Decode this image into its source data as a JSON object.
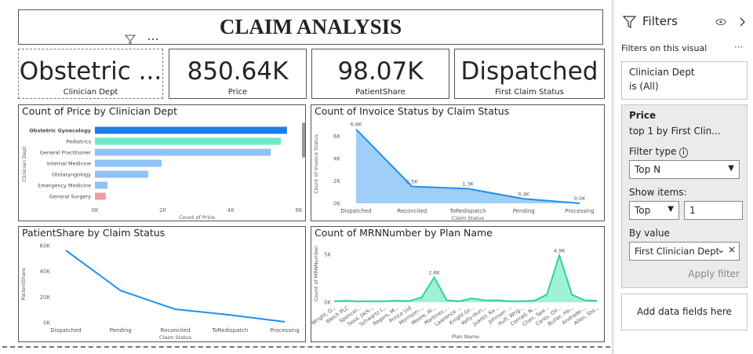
{
  "header": {
    "title": "CLAIM ANALYSIS"
  },
  "cards": [
    {
      "value": "Obstetric ...",
      "label": "Clinician Dept"
    },
    {
      "value": "850.64K",
      "label": "Price"
    },
    {
      "value": "98.07K",
      "label": "PatientShare"
    },
    {
      "value": "Dispatched",
      "label": "First Claim Status"
    }
  ],
  "chart_data": [
    {
      "type": "bar",
      "orientation": "horizontal",
      "title": "Count of Price by Clinician Dept",
      "x_label": "Count of Price",
      "y_label": "Clinician Dept",
      "categories": [
        "Obstetric Gynecology",
        "Pediatrics",
        "General Practitioner",
        "Internal Medicine",
        "Otolaryngology",
        "Emergency Medicine",
        "General Surgery"
      ],
      "values": [
        5650,
        5470,
        5170,
        1960,
        1570,
        370,
        320
      ],
      "colors": [
        "#1a7ee6",
        "#6ee8c6",
        "#8fc3f5",
        "#8fc3f5",
        "#8fc3f5",
        "#8fc3f5",
        "#ec9ca3"
      ],
      "xlim": [
        0,
        6000
      ],
      "xticks": [
        {
          "value": 0,
          "label": "0K"
        },
        {
          "value": 2000,
          "label": "2K"
        },
        {
          "value": 4000,
          "label": "4K"
        },
        {
          "value": 6000,
          "label": "6K"
        }
      ]
    },
    {
      "type": "area",
      "title": "Count of Invoice Status by Claim Status",
      "x_label": "Claim Status",
      "y_label": "Count of Invoice Status",
      "categories": [
        "Dispatched",
        "Reconciled",
        "ToRedispatch",
        "Pending",
        "Processing"
      ],
      "values": [
        6600,
        1500,
        1300,
        400,
        0
      ],
      "value_labels": [
        "6.6K",
        "1.5K",
        "1.3K",
        "0.4K",
        "0.0K"
      ],
      "color": "#1f8ff0",
      "fill": "#8ec6f7",
      "ylim": [
        0,
        7000
      ],
      "yticks": [
        {
          "value": 0,
          "label": "0K"
        },
        {
          "value": 2000,
          "label": "2K"
        },
        {
          "value": 4000,
          "label": "4K"
        },
        {
          "value": 6000,
          "label": "6K"
        }
      ]
    },
    {
      "type": "line",
      "title": "PatientShare by Claim Status",
      "x_label": "Claim Status",
      "y_label": "PatientShare",
      "categories": [
        "Dispatched",
        "Pending",
        "Reconciled",
        "ToRedispatch",
        "Processing"
      ],
      "values": [
        56300,
        25000,
        10400,
        6000,
        600
      ],
      "color": "#1f8ff0",
      "ylim": [
        0,
        60000
      ],
      "yticks": [
        {
          "value": 0,
          "label": "0K"
        },
        {
          "value": 20000,
          "label": "20K"
        },
        {
          "value": 40000,
          "label": "40K"
        },
        {
          "value": 60000,
          "label": "60K"
        }
      ]
    },
    {
      "type": "area",
      "title": "Count of MRNNumber by Plan Name",
      "x_label": "Plan Name",
      "y_label": "Count of MRNNumber",
      "categories": [
        "Wright, D...",
        "Welch PLC",
        "Spencer...",
        "Sosa, Jack...",
        "Schwartz I...",
        "Rogers, M...",
        "Prince Ltd",
        "Morrison-...",
        "Moore, Al...",
        "Martinez,...",
        "Lawrence ...",
        "Knight Gr...",
        "Kelly-Hun...",
        "Juarez, Ka...",
        "Johnson ...",
        "Huff, Wrig...",
        "Conrad, N...",
        "Chen, Spa...",
        "Carey, Oir...",
        "Butler, Ho...",
        "Andrade-...",
        "Allen, Sto..."
      ],
      "values": [
        100,
        150,
        80,
        100,
        100,
        150,
        120,
        500,
        2600,
        200,
        100,
        400,
        200,
        200,
        100,
        100,
        150,
        800,
        4900,
        800,
        200,
        150
      ],
      "value_labels": [
        null,
        null,
        null,
        null,
        null,
        null,
        null,
        null,
        "2.6K",
        null,
        null,
        null,
        null,
        null,
        null,
        null,
        null,
        null,
        "4.9K",
        null,
        null,
        null
      ],
      "color": "#2fd29c",
      "fill": "#8ff0cf",
      "ylim": [
        0,
        6000
      ],
      "yticks": [
        {
          "value": 0,
          "label": "0K"
        },
        {
          "value": 5000,
          "label": "5K"
        }
      ]
    }
  ],
  "filters": {
    "title": "Filters",
    "section": "Filters on this visual",
    "items": [
      {
        "field": "Clinician Dept",
        "state": "is (All)"
      },
      {
        "field": "Price",
        "state": "top 1 by First Clin...",
        "filter_type_label": "Filter type",
        "filter_type": "Top N",
        "show_items_label": "Show items:",
        "show_items": "Top",
        "count": "1",
        "by_value_label": "By value",
        "by_value": "First Clinician Dept",
        "apply": "Apply filter"
      }
    ],
    "add_fields": "Add data fields here"
  }
}
